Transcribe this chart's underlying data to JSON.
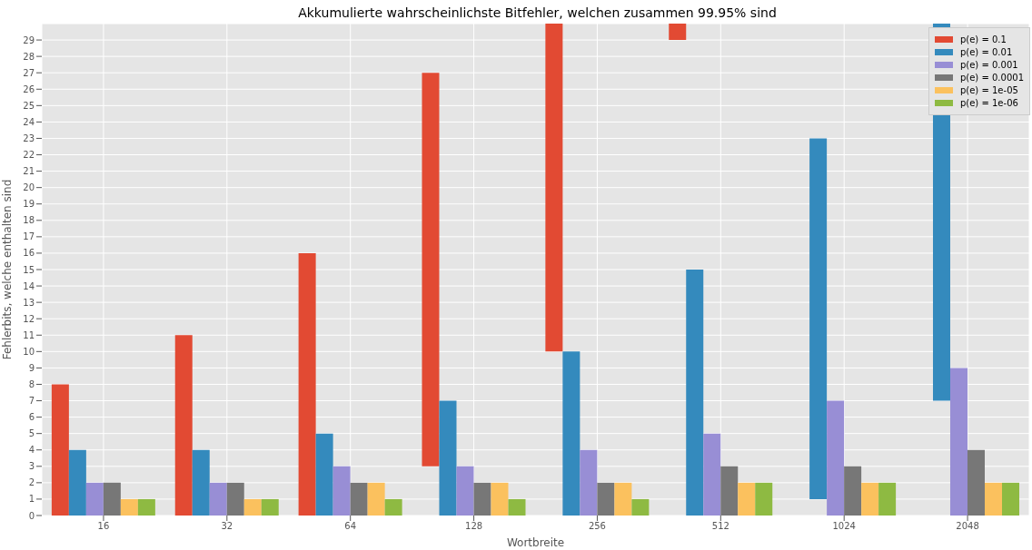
{
  "chart_data": {
    "type": "bar",
    "title": "Akkumulierte wahrscheinlichste Bitfehler, welchen zusammen 99.95% sind",
    "xlabel": "Wortbreite",
    "ylabel": "Fehlerbits, welche enthalten sind",
    "categories": [
      "16",
      "32",
      "64",
      "128",
      "256",
      "512",
      "1024",
      "2048"
    ],
    "series": [
      {
        "name": "p(e) = 0.1",
        "color": "#e24a33",
        "values": [
          8,
          11,
          16,
          24,
          20,
          1,
          null,
          null
        ],
        "base": [
          0,
          0,
          0,
          3,
          10,
          29,
          null,
          null
        ]
      },
      {
        "name": "p(e) = 0.01",
        "color": "#348abd",
        "values": [
          4,
          4,
          5,
          7,
          10,
          15,
          22,
          23
        ],
        "base": [
          0,
          0,
          0,
          0,
          0,
          0,
          1,
          7
        ]
      },
      {
        "name": "p(e) = 0.001",
        "color": "#988ed5",
        "values": [
          2,
          2,
          3,
          3,
          4,
          5,
          7,
          9
        ]
      },
      {
        "name": "p(e) = 0.0001",
        "color": "#777777",
        "values": [
          2,
          2,
          2,
          2,
          2,
          3,
          3,
          4
        ]
      },
      {
        "name": "p(e) = 1e-05",
        "color": "#fbc15e",
        "values": [
          1,
          1,
          2,
          2,
          2,
          2,
          2,
          2
        ]
      },
      {
        "name": "p(e) = 1e-06",
        "color": "#8eba42",
        "values": [
          1,
          1,
          1,
          1,
          1,
          2,
          2,
          2
        ]
      }
    ],
    "ylim": [
      0,
      30
    ],
    "yticks": [
      0,
      1,
      2,
      3,
      4,
      5,
      6,
      7,
      8,
      9,
      10,
      11,
      12,
      13,
      14,
      15,
      16,
      17,
      18,
      19,
      20,
      21,
      22,
      23,
      24,
      25,
      26,
      27,
      28,
      29
    ],
    "grid": true,
    "legend": "top right"
  }
}
